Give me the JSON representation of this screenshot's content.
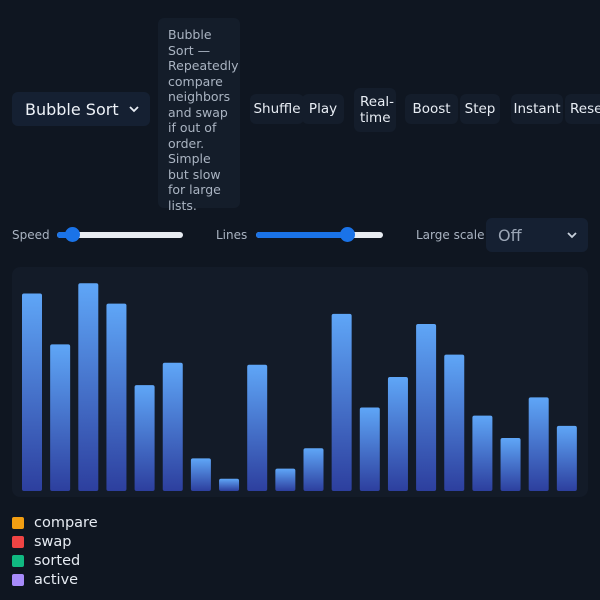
{
  "algorithm": {
    "selected": "Bubble Sort"
  },
  "description": "Bubble Sort — Repeatedly compare neighbors and swap if out of order. Simple but slow for large lists.",
  "buttons": {
    "shuffle": "Shuffle",
    "play": "Play",
    "realtime": "Real-time",
    "boost": "Boost",
    "step": "Step",
    "instant": "Instant",
    "reset": "Reset"
  },
  "controls": {
    "speed_label": "Speed",
    "speed_level": 0.12,
    "lines_label": "Lines",
    "lines_level": 0.72,
    "large_scale_label": "Large scale",
    "large_scale_value": "Off"
  },
  "colors": {
    "bar_top": "#5fa6f7",
    "bar_bottom": "#2d3f9e",
    "accent": "#1a73e8"
  },
  "chart_data": {
    "type": "bar",
    "values": [
      97,
      72,
      102,
      92,
      52,
      63,
      16,
      6,
      62,
      11,
      21,
      87,
      41,
      56,
      82,
      67,
      37,
      26,
      46,
      32
    ],
    "ylim": [
      0,
      110
    ]
  },
  "legend": [
    {
      "label": "compare",
      "color": "#f29e12"
    },
    {
      "label": "swap",
      "color": "#ef4444"
    },
    {
      "label": "sorted",
      "color": "#10b981"
    },
    {
      "label": "active",
      "color": "#a78bfa"
    }
  ]
}
